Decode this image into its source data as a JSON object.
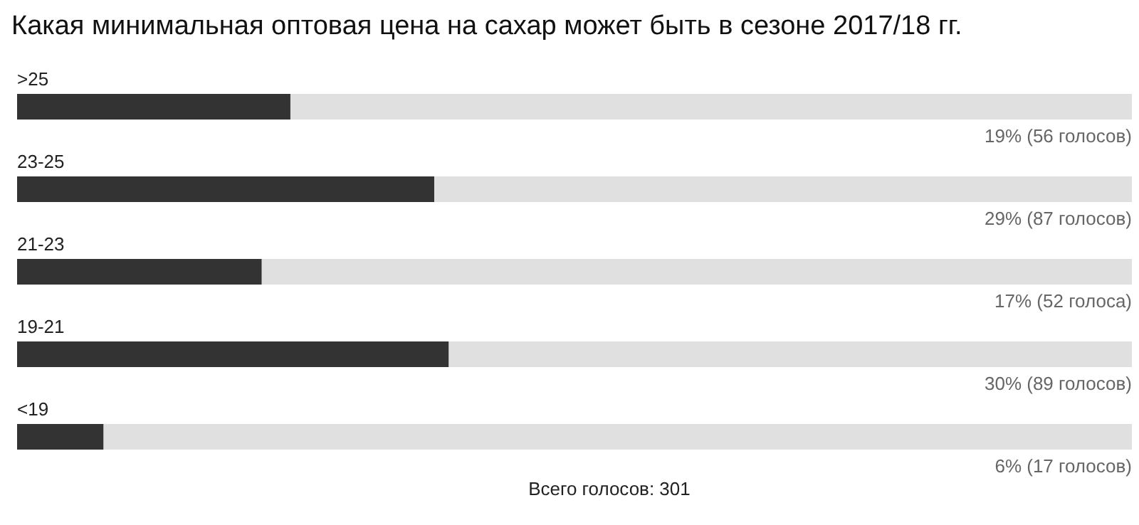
{
  "chart_data": {
    "type": "bar",
    "orientation": "horizontal",
    "title": "Какая минимальная оптовая цена на сахар может быть в сезоне 2017/18 гг.",
    "categories": [
      ">25",
      "23-25",
      "21-23",
      "19-21",
      "<19"
    ],
    "values": [
      19,
      29,
      17,
      30,
      6
    ],
    "value_labels": [
      "19% (56 голосов)",
      "29% (87 голосов)",
      "17% (52 голоса)",
      "30% (89 голосов)",
      "6% (17 голосов)"
    ],
    "color": "#333333",
    "xlim": [
      0,
      77.5
    ],
    "annotations": [
      "Всего голосов: 301"
    ]
  }
}
